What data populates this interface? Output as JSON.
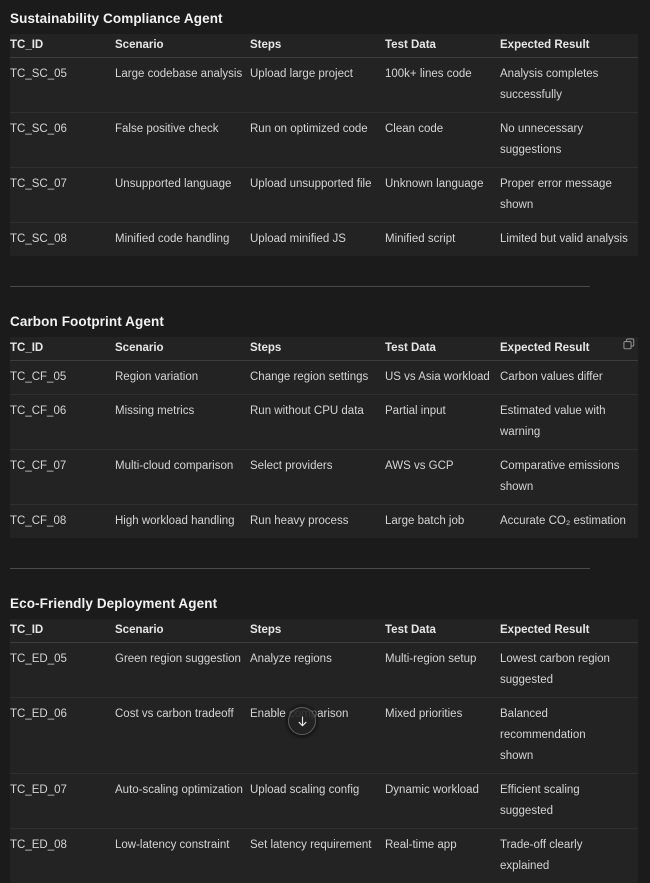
{
  "colors": {
    "page_bg": "#1b1b1b",
    "table_bg": "#232323",
    "row_divider": "#2f2f2f",
    "header_divider": "#3d3d3d",
    "section_divider": "#4b4b4b",
    "heading_text": "#f2f2f2",
    "body_text": "#d4d4d4"
  },
  "icons": {
    "copy": "two-overlapping-squares",
    "scroll_down": "down-arrow"
  },
  "sections": [
    {
      "title": "Sustainability Compliance Agent",
      "has_copy_icon": false,
      "has_divider_after": true,
      "columns": [
        "TC_ID",
        "Scenario",
        "Steps",
        "Test Data",
        "Expected Result"
      ],
      "rows": [
        [
          "TC_SC_05",
          "Large codebase analysis",
          "Upload large project",
          "100k+ lines code",
          "Analysis completes\nsuccessfully"
        ],
        [
          "TC_SC_06",
          "False positive check",
          "Run on optimized code",
          "Clean code",
          "No unnecessary suggestions"
        ],
        [
          "TC_SC_07",
          "Unsupported language",
          "Upload unsupported file",
          "Unknown language",
          "Proper error message shown"
        ],
        [
          "TC_SC_08",
          "Minified code handling",
          "Upload minified JS",
          "Minified script",
          "Limited but valid analysis"
        ]
      ]
    },
    {
      "title": "Carbon Footprint Agent",
      "has_copy_icon": true,
      "has_divider_after": true,
      "columns": [
        "TC_ID",
        "Scenario",
        "Steps",
        "Test Data",
        "Expected Result"
      ],
      "rows": [
        [
          "TC_CF_05",
          "Region variation",
          "Change region settings",
          "US vs Asia workload",
          "Carbon values differ"
        ],
        [
          "TC_CF_06",
          "Missing metrics",
          "Run without CPU data",
          "Partial input",
          "Estimated value with warning"
        ],
        [
          "TC_CF_07",
          "Multi-cloud comparison",
          "Select providers",
          "AWS vs GCP",
          "Comparative emissions\nshown"
        ],
        [
          "TC_CF_08",
          "High workload handling",
          "Run heavy process",
          "Large batch job",
          "Accurate CO₂ estimation"
        ]
      ]
    },
    {
      "title": "Eco-Friendly Deployment Agent",
      "has_copy_icon": false,
      "has_divider_after": false,
      "columns": [
        "TC_ID",
        "Scenario",
        "Steps",
        "Test Data",
        "Expected Result"
      ],
      "rows": [
        [
          "TC_ED_05",
          "Green region suggestion",
          "Analyze regions",
          "Multi-region setup",
          "Lowest carbon region\nsuggested"
        ],
        [
          "TC_ED_06",
          "Cost vs carbon tradeoff",
          "Enable comparison",
          "Mixed priorities",
          "Balanced recommendation\nshown"
        ],
        [
          "TC_ED_07",
          "Auto-scaling optimization",
          "Upload scaling config",
          "Dynamic workload",
          "Efficient scaling suggested"
        ],
        [
          "TC_ED_08",
          "Low-latency constraint",
          "Set latency requirement",
          "Real-time app",
          "Trade-off clearly explained"
        ]
      ]
    }
  ]
}
